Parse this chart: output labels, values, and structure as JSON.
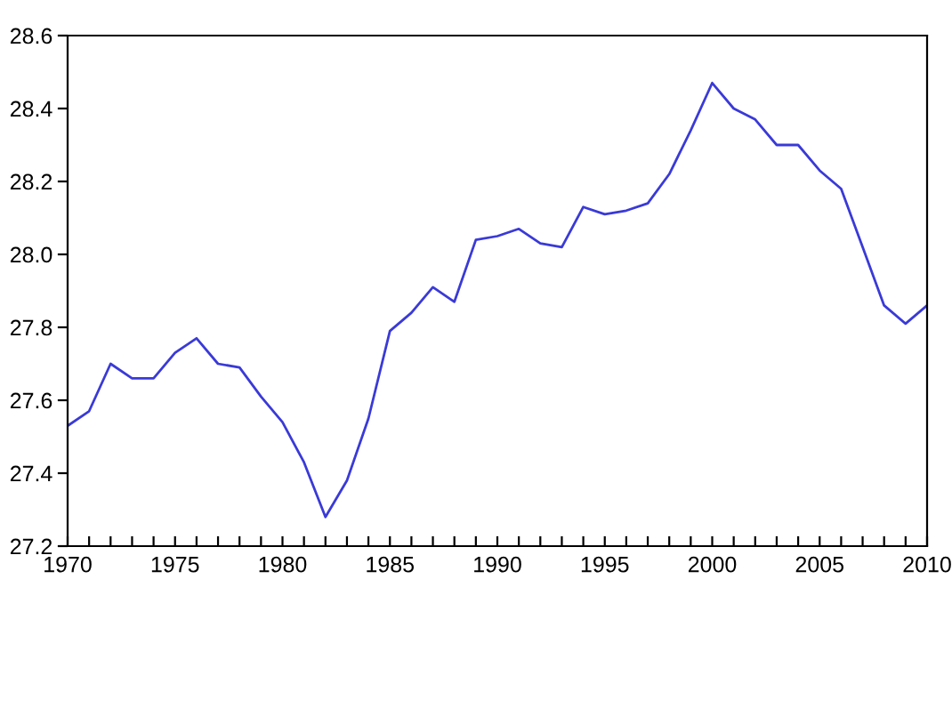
{
  "chart_data": {
    "type": "line",
    "x": [
      1970,
      1971,
      1972,
      1973,
      1974,
      1975,
      1976,
      1977,
      1978,
      1979,
      1980,
      1981,
      1982,
      1983,
      1984,
      1985,
      1986,
      1987,
      1988,
      1989,
      1990,
      1991,
      1992,
      1993,
      1994,
      1995,
      1996,
      1997,
      1998,
      1999,
      2000,
      2001,
      2002,
      2003,
      2004,
      2005,
      2006,
      2007,
      2008,
      2009,
      2010
    ],
    "series": [
      {
        "color": "#3a3ad8",
        "values": [
          27.53,
          27.57,
          27.7,
          27.66,
          27.66,
          27.73,
          27.77,
          27.7,
          27.69,
          27.61,
          27.54,
          27.43,
          27.28,
          27.38,
          27.55,
          27.79,
          27.84,
          27.91,
          27.87,
          28.04,
          28.05,
          28.07,
          28.03,
          28.02,
          28.13,
          28.11,
          28.12,
          28.14,
          28.22,
          28.34,
          28.47,
          28.4,
          28.37,
          28.3,
          28.3,
          28.23,
          28.18,
          28.02,
          27.86,
          27.81,
          27.86
        ]
      }
    ],
    "xlim": [
      1970,
      2010
    ],
    "xticks": [
      1970,
      {
        "value": 1971,
        "label": null
      },
      {
        "value": 1972,
        "label": null
      },
      {
        "value": 1973,
        "label": null
      },
      {
        "value": 1974,
        "label": null
      },
      1975,
      {
        "value": 1976,
        "label": null
      },
      {
        "value": 1977,
        "label": null
      },
      {
        "value": 1978,
        "label": null
      },
      {
        "value": 1979,
        "label": null
      },
      1980,
      {
        "value": 1981,
        "label": null
      },
      {
        "value": 1982,
        "label": null
      },
      {
        "value": 1983,
        "label": null
      },
      {
        "value": 1984,
        "label": null
      },
      1985,
      {
        "value": 1986,
        "label": null
      },
      {
        "value": 1987,
        "label": null
      },
      {
        "value": 1988,
        "label": null
      },
      {
        "value": 1989,
        "label": null
      },
      1990,
      {
        "value": 1991,
        "label": null
      },
      {
        "value": 1992,
        "label": null
      },
      {
        "value": 1993,
        "label": null
      },
      {
        "value": 1994,
        "label": null
      },
      1995,
      {
        "value": 1996,
        "label": null
      },
      {
        "value": 1997,
        "label": null
      },
      {
        "value": 1998,
        "label": null
      },
      {
        "value": 1999,
        "label": null
      },
      2000,
      {
        "value": 2001,
        "label": null
      },
      {
        "value": 2002,
        "label": null
      },
      {
        "value": 2003,
        "label": null
      },
      {
        "value": 2004,
        "label": null
      },
      2005,
      {
        "value": 2006,
        "label": null
      },
      {
        "value": 2007,
        "label": null
      },
      {
        "value": 2008,
        "label": null
      },
      {
        "value": 2009,
        "label": null
      },
      2010
    ],
    "ylim": [
      27.2,
      28.6
    ],
    "yticks": [
      {
        "value": 27.2,
        "label": "27.2"
      },
      {
        "value": 27.4,
        "label": "27.4"
      },
      {
        "value": 27.6,
        "label": "27.6"
      },
      {
        "value": 27.8,
        "label": "27.8"
      },
      {
        "value": 28.0,
        "label": "28.0"
      },
      {
        "value": 28.2,
        "label": "28.2"
      },
      {
        "value": 28.4,
        "label": "28.4"
      },
      {
        "value": 28.6,
        "label": "28.6"
      }
    ],
    "grid": false,
    "legend": false,
    "marker": "none",
    "line_style": "solid"
  }
}
